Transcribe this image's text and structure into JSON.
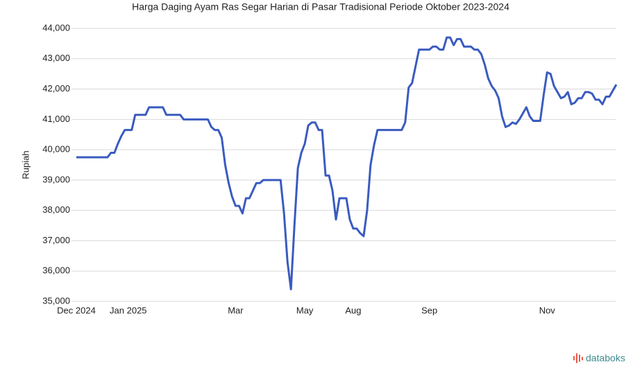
{
  "chart_data": {
    "type": "line",
    "title": "Harga Daging Ayam Ras Segar Harian di Pasar Tradisional Periode Oktober 2023-2024",
    "y_label": "Rupiah",
    "brand": "databoks",
    "categories": [
      "Dec 2024",
      null,
      null,
      null,
      null,
      null,
      null,
      null,
      null,
      null,
      null,
      null,
      null,
      null,
      null,
      "Jan 2025",
      null,
      null,
      null,
      null,
      null,
      null,
      null,
      null,
      null,
      null,
      null,
      null,
      null,
      null,
      null,
      null,
      null,
      null,
      null,
      null,
      null,
      null,
      null,
      null,
      null,
      null,
      null,
      null,
      null,
      null,
      "Mar",
      null,
      null,
      null,
      null,
      null,
      null,
      null,
      null,
      null,
      null,
      null,
      null,
      null,
      null,
      null,
      null,
      null,
      null,
      null,
      "May",
      null,
      null,
      null,
      null,
      null,
      null,
      null,
      null,
      null,
      null,
      null,
      null,
      null,
      "Aug",
      null,
      null,
      null,
      null,
      null,
      null,
      null,
      null,
      null,
      null,
      null,
      null,
      null,
      null,
      null,
      null,
      null,
      null,
      null,
      null,
      null,
      "Sep",
      null,
      null,
      null,
      null,
      null,
      null,
      null,
      null,
      null,
      null,
      null,
      null,
      null,
      null,
      null,
      null,
      null,
      null,
      null,
      null,
      null,
      null,
      null,
      null,
      null,
      null,
      null,
      null,
      null,
      null,
      null,
      null,
      null,
      "Nov",
      null,
      null,
      null,
      null,
      null,
      null,
      null,
      null,
      null,
      null,
      null,
      null,
      null,
      null,
      null,
      null,
      null,
      null,
      null,
      null
    ],
    "series": [
      {
        "name": "Harga",
        "color": "#3a5bbf",
        "values": [
          39750,
          39750,
          39750,
          39750,
          39750,
          39750,
          39750,
          39750,
          39750,
          39750,
          39900,
          39900,
          40200,
          40450,
          40650,
          40650,
          40650,
          41150,
          41150,
          41150,
          41150,
          41400,
          41400,
          41400,
          41400,
          41400,
          41150,
          41150,
          41150,
          41150,
          41150,
          41000,
          41000,
          41000,
          41000,
          41000,
          41000,
          41000,
          41000,
          40750,
          40650,
          40650,
          40400,
          39500,
          38900,
          38450,
          38150,
          38150,
          37900,
          38400,
          38400,
          38650,
          38900,
          38900,
          39000,
          39000,
          39000,
          39000,
          39000,
          39000,
          37900,
          36300,
          35400,
          37500,
          39400,
          39900,
          40200,
          40800,
          40900,
          40900,
          40650,
          40650,
          39150,
          39150,
          38650,
          37700,
          38400,
          38400,
          38400,
          37700,
          37400,
          37400,
          37250,
          37150,
          38000,
          39500,
          40150,
          40650,
          40650,
          40650,
          40650,
          40650,
          40650,
          40650,
          40650,
          40900,
          42050,
          42200,
          42750,
          43300,
          43300,
          43300,
          43300,
          43400,
          43400,
          43300,
          43300,
          43700,
          43700,
          43450,
          43650,
          43650,
          43400,
          43400,
          43400,
          43300,
          43300,
          43150,
          42800,
          42350,
          42100,
          41950,
          41700,
          41100,
          40750,
          40800,
          40900,
          40850,
          41000,
          41200,
          41400,
          41100,
          40950,
          40950,
          40950,
          41800,
          42550,
          42500,
          42100,
          41900,
          41700,
          41750,
          41900,
          41500,
          41550,
          41700,
          41700,
          41900,
          41900,
          41850,
          41650,
          41650,
          41500,
          41750,
          41750,
          41950,
          42150
        ]
      }
    ],
    "ylim": [
      35000,
      44000
    ],
    "yticks": [
      {
        "value": 35000,
        "label": "35,000"
      },
      {
        "value": 36000,
        "label": "36,000"
      },
      {
        "value": 37000,
        "label": "37,000"
      },
      {
        "value": 38000,
        "label": "38,000"
      },
      {
        "value": 39000,
        "label": "39,000"
      },
      {
        "value": 40000,
        "label": "40,000"
      },
      {
        "value": 41000,
        "label": "41,000"
      },
      {
        "value": 42000,
        "label": "42,000"
      },
      {
        "value": 43000,
        "label": "43,000"
      },
      {
        "value": 44000,
        "label": "44,000"
      }
    ],
    "grid": true
  }
}
